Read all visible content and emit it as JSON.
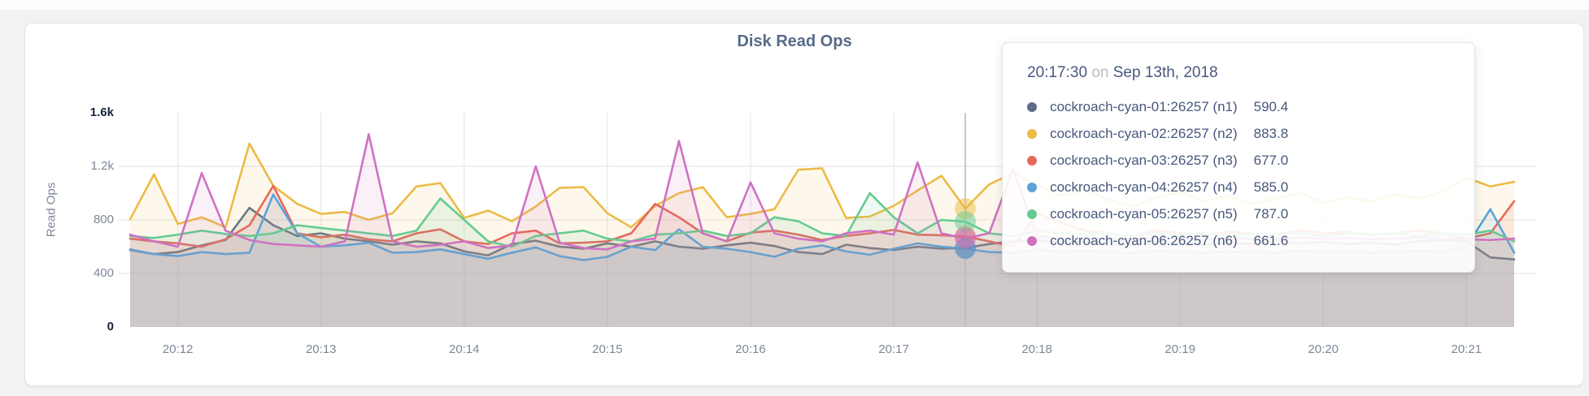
{
  "page": {
    "title": "Disk Read Ops"
  },
  "axes": {
    "y_title": "Read Ops",
    "y_ticks": [
      {
        "label": "1.6k",
        "value": 1600,
        "emphasis": true
      },
      {
        "label": "1.2k",
        "value": 1200,
        "emphasis": false
      },
      {
        "label": "800",
        "value": 800,
        "emphasis": false
      },
      {
        "label": "400",
        "value": 400,
        "emphasis": false
      },
      {
        "label": "0",
        "value": 0,
        "emphasis": true
      }
    ]
  },
  "chart_data": {
    "type": "line",
    "title": "Disk Read Ops",
    "xlabel": "",
    "ylabel": "Read Ops",
    "ylim": [
      0,
      1600
    ],
    "grid": true,
    "legend_position": "tooltip-only",
    "start_time": "20:11:40",
    "interval_seconds": 10,
    "x_ticks": [
      {
        "label": "20:12",
        "index": 2
      },
      {
        "label": "20:13",
        "index": 8
      },
      {
        "label": "20:14",
        "index": 14
      },
      {
        "label": "20:15",
        "index": 20
      },
      {
        "label": "20:16",
        "index": 26
      },
      {
        "label": "20:17",
        "index": 32
      },
      {
        "label": "20:18",
        "index": 38
      },
      {
        "label": "20:19",
        "index": 44
      },
      {
        "label": "20:20",
        "index": 50
      },
      {
        "label": "20:21",
        "index": 56
      }
    ],
    "hover": {
      "index": 35,
      "time": "20:17:30"
    },
    "series": [
      {
        "name": "cockroach-cyan-01:26257 (n1)",
        "color": "#5f6c87",
        "values": [
          575,
          545,
          560,
          610,
          650,
          890,
          760,
          680,
          700,
          660,
          640,
          615,
          640,
          625,
          565,
          535,
          620,
          645,
          600,
          585,
          625,
          600,
          640,
          600,
          585,
          610,
          630,
          605,
          560,
          545,
          615,
          590,
          575,
          600,
          585,
          590.4,
          620,
          640,
          650,
          630,
          640,
          620,
          610,
          635,
          625,
          615,
          630,
          620,
          640,
          625,
          635,
          620,
          630,
          615,
          640,
          650,
          640,
          520,
          505
        ]
      },
      {
        "name": "cockroach-cyan-02:26257 (n2)",
        "color": "#ecbb45",
        "values": [
          805,
          1140,
          770,
          820,
          745,
          1370,
          1055,
          920,
          845,
          860,
          800,
          850,
          1050,
          1075,
          815,
          870,
          790,
          900,
          1040,
          1045,
          850,
          745,
          905,
          1000,
          1045,
          820,
          845,
          880,
          1175,
          1185,
          815,
          825,
          905,
          1020,
          1130,
          883.8,
          1065,
          1150,
          1060,
          980,
          1020,
          950,
          900,
          970,
          1010,
          940,
          980,
          920,
          960,
          1000,
          930,
          970,
          940,
          990,
          960,
          1010,
          1115,
          1050,
          1085
        ]
      },
      {
        "name": "cockroach-cyan-03:26257 (n3)",
        "color": "#e6695c",
        "values": [
          660,
          640,
          625,
          600,
          655,
          760,
          1055,
          700,
          670,
          690,
          655,
          640,
          700,
          730,
          640,
          620,
          700,
          720,
          625,
          630,
          640,
          700,
          920,
          820,
          700,
          640,
          705,
          720,
          690,
          650,
          680,
          700,
          725,
          690,
          685,
          677,
          640,
          600,
          850,
          780,
          720,
          700,
          680,
          720,
          700,
          690,
          710,
          700,
          690,
          720,
          700,
          710,
          690,
          700,
          720,
          700,
          660,
          700,
          940
        ]
      },
      {
        "name": "cockroach-cyan-04:26257 (n4)",
        "color": "#5ba3d9",
        "values": [
          580,
          545,
          530,
          560,
          545,
          555,
          990,
          700,
          600,
          610,
          630,
          555,
          560,
          580,
          545,
          510,
          555,
          595,
          530,
          500,
          525,
          600,
          575,
          730,
          600,
          585,
          560,
          525,
          585,
          610,
          565,
          540,
          585,
          625,
          600,
          585,
          560,
          555,
          580,
          560,
          570,
          560,
          550,
          570,
          560,
          555,
          565,
          560,
          555,
          570,
          560,
          565,
          555,
          560,
          570,
          560,
          600,
          880,
          555
        ]
      },
      {
        "name": "cockroach-cyan-05:26257 (n5)",
        "color": "#66cb90",
        "values": [
          680,
          665,
          690,
          720,
          695,
          680,
          700,
          760,
          740,
          720,
          700,
          680,
          720,
          960,
          800,
          640,
          600,
          680,
          700,
          720,
          660,
          640,
          690,
          700,
          720,
          680,
          700,
          820,
          790,
          700,
          680,
          1000,
          820,
          700,
          800,
          787,
          700,
          680,
          720,
          700,
          690,
          700,
          680,
          700,
          690,
          700,
          680,
          700,
          690,
          700,
          680,
          700,
          690,
          700,
          680,
          700,
          690,
          720,
          640
        ]
      },
      {
        "name": "cockroach-cyan-06:26257 (n6)",
        "color": "#ce72c3",
        "values": [
          690,
          640,
          600,
          1150,
          720,
          650,
          620,
          610,
          600,
          640,
          1440,
          640,
          600,
          615,
          640,
          590,
          610,
          1200,
          630,
          590,
          580,
          640,
          660,
          1390,
          700,
          640,
          1080,
          700,
          660,
          640,
          700,
          720,
          690,
          1230,
          700,
          661.6,
          700,
          1180,
          680,
          660,
          670,
          660,
          650,
          670,
          660,
          655,
          665,
          660,
          655,
          670,
          660,
          665,
          655,
          660,
          670,
          660,
          655,
          650,
          660
        ]
      }
    ]
  },
  "tooltip": {
    "time": "20:17:30",
    "separator": "on",
    "date": "Sep 13th, 2018",
    "rows": [
      {
        "label": "cockroach-cyan-01:26257 (n1)",
        "value": "590.4",
        "color": "#5f6c87"
      },
      {
        "label": "cockroach-cyan-02:26257 (n2)",
        "value": "883.8",
        "color": "#ecbb45"
      },
      {
        "label": "cockroach-cyan-03:26257 (n3)",
        "value": "677.0",
        "color": "#e6695c"
      },
      {
        "label": "cockroach-cyan-04:26257 (n4)",
        "value": "585.0",
        "color": "#5ba3d9"
      },
      {
        "label": "cockroach-cyan-05:26257 (n5)",
        "value": "787.0",
        "color": "#66cb90"
      },
      {
        "label": "cockroach-cyan-06:26257 (n6)",
        "value": "661.6",
        "color": "#ce72c3"
      }
    ]
  },
  "style": {
    "grid_color": "#ececee",
    "hover_line_color": "#b8b8b8",
    "area_opacity": 0.11,
    "hover_dot_opacity": 0.5
  }
}
